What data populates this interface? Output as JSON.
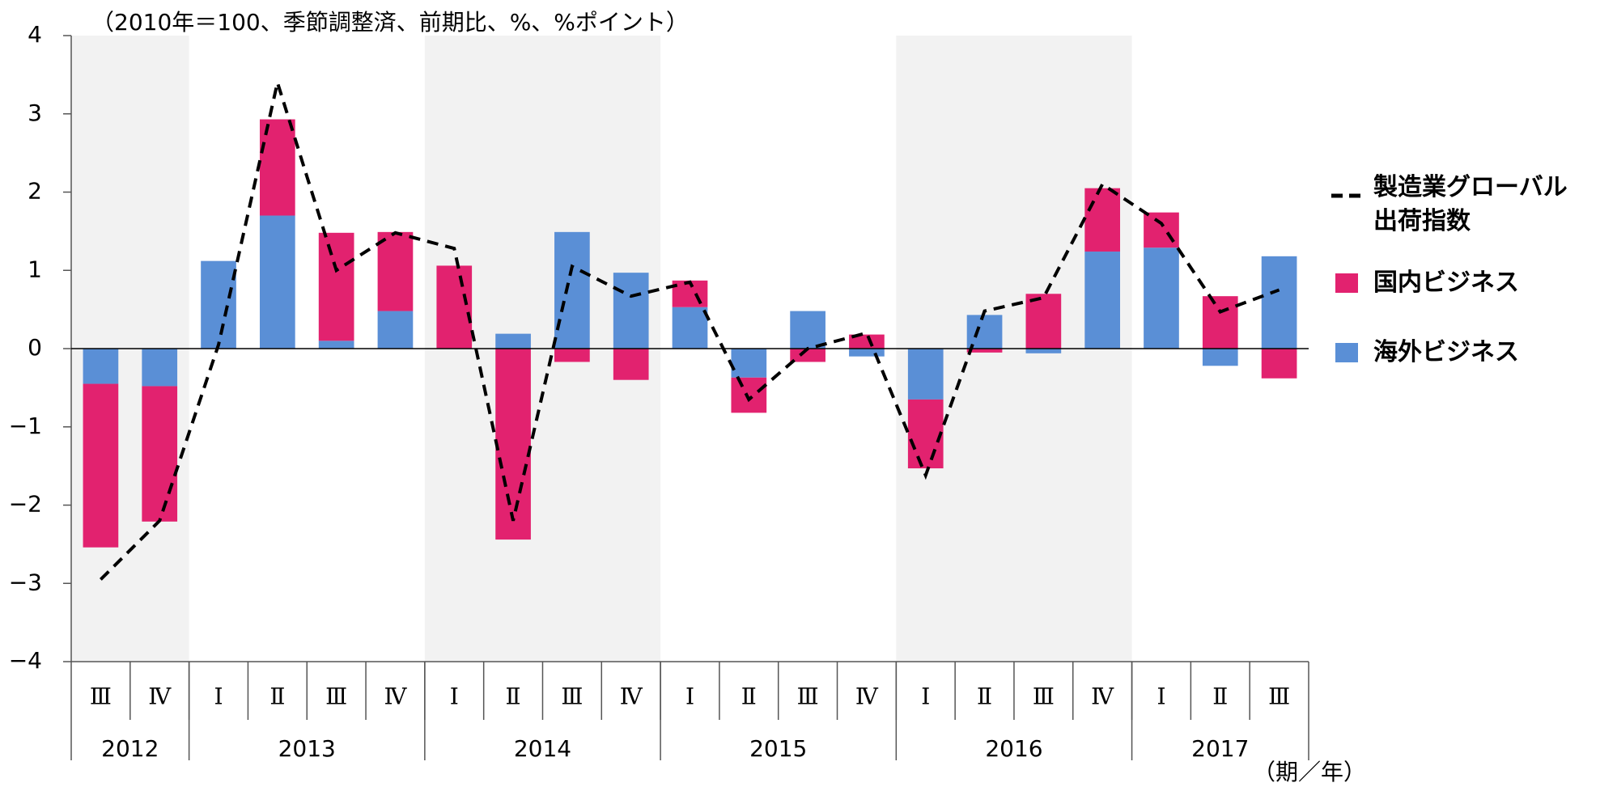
{
  "chart_data": {
    "type": "bar",
    "subtitle": "（2010年＝100、季節調整済、前期比、%、%ポイント）",
    "x_label": "（期／年）",
    "categories": [
      "Ⅲ",
      "Ⅳ",
      "Ⅰ",
      "Ⅱ",
      "Ⅲ",
      "Ⅳ",
      "Ⅰ",
      "Ⅱ",
      "Ⅲ",
      "Ⅳ",
      "Ⅰ",
      "Ⅱ",
      "Ⅲ",
      "Ⅳ",
      "Ⅰ",
      "Ⅱ",
      "Ⅲ",
      "Ⅳ",
      "Ⅰ",
      "Ⅱ",
      "Ⅲ"
    ],
    "years": [
      "2012",
      null,
      "2013",
      null,
      null,
      null,
      "2014",
      null,
      null,
      null,
      "2015",
      null,
      null,
      null,
      "2016",
      null,
      null,
      null,
      "2017",
      null,
      null
    ],
    "series": [
      {
        "name": "製造業グローバル出荷指数",
        "type": "line",
        "dashed": true,
        "color": "#000000",
        "values": [
          -2.95,
          -2.2,
          0.05,
          3.4,
          1.0,
          1.48,
          1.28,
          -2.2,
          1.05,
          0.67,
          0.85,
          -0.65,
          0.0,
          0.2,
          -1.62,
          0.48,
          0.65,
          2.1,
          1.6,
          0.47,
          0.75
        ]
      },
      {
        "name": "国内ビジネス",
        "type": "bar",
        "color": "#e2226f",
        "values": [
          -2.09,
          -1.73,
          0,
          1.23,
          1.38,
          1.01,
          1.06,
          -2.44,
          -0.17,
          -0.4,
          0.34,
          -0.45,
          -0.17,
          0.18,
          -0.88,
          -0.05,
          0.7,
          0.81,
          0.45,
          0.67,
          -0.38
        ]
      },
      {
        "name": "海外ビジネス",
        "type": "bar",
        "color": "#5a8fd6",
        "values": [
          -0.45,
          -0.48,
          1.12,
          1.7,
          0.1,
          0.48,
          0,
          0.19,
          1.49,
          0.97,
          0.53,
          -0.37,
          0.48,
          -0.1,
          -0.65,
          0.43,
          -0.06,
          1.24,
          1.29,
          -0.22,
          1.18
        ]
      }
    ],
    "ylim": [
      -4,
      4
    ],
    "yticks": [
      {
        "value": -4,
        "label": "−4"
      },
      {
        "value": -3,
        "label": "−3"
      },
      {
        "value": -2,
        "label": "−2"
      },
      {
        "value": -1,
        "label": "−1"
      },
      0,
      1,
      2,
      3,
      4
    ],
    "shaded_years": true
  }
}
